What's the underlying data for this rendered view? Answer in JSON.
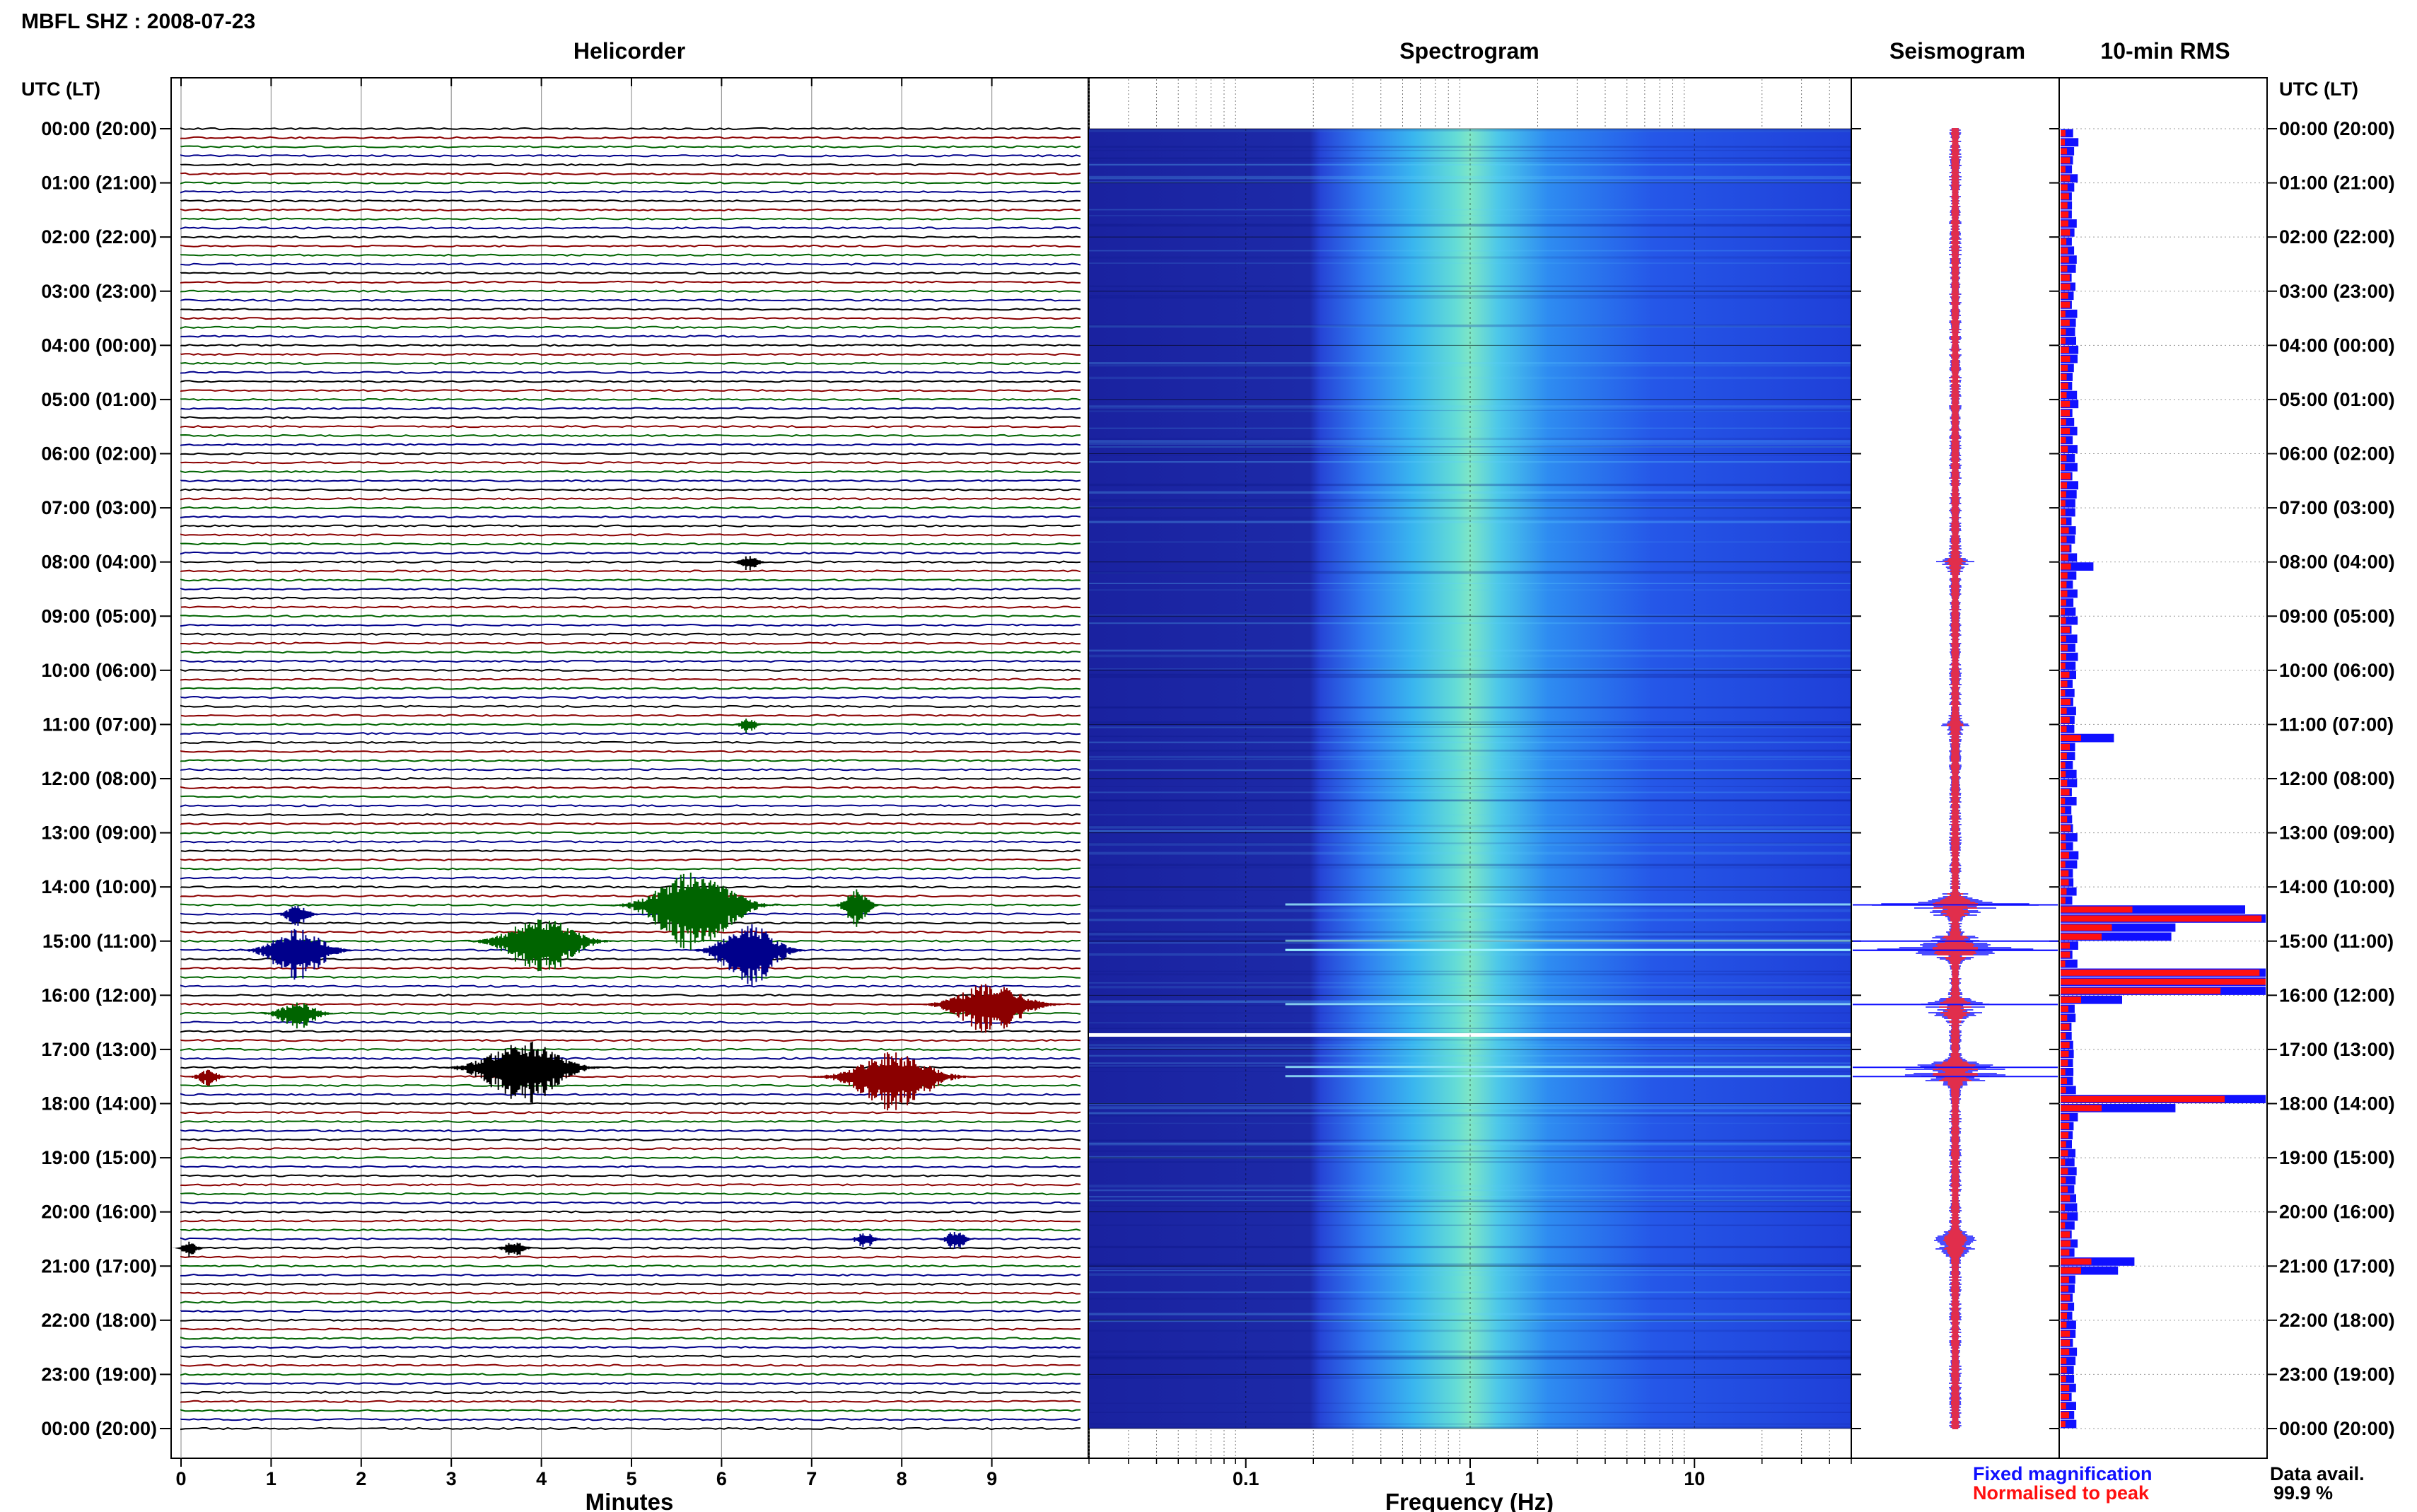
{
  "station_title": "MBFL SHZ : 2008-07-23",
  "panels": {
    "helicorder": "Helicorder",
    "spectrogram": "Spectrogram",
    "seismogram": "Seismogram",
    "rms": "10-min RMS"
  },
  "time_axis_header": "UTC (LT)",
  "time_labels": [
    "00:00 (20:00)",
    "01:00 (21:00)",
    "02:00 (22:00)",
    "03:00 (23:00)",
    "04:00 (00:00)",
    "05:00 (01:00)",
    "06:00 (02:00)",
    "07:00 (03:00)",
    "08:00 (04:00)",
    "09:00 (05:00)",
    "10:00 (06:00)",
    "11:00 (07:00)",
    "12:00 (08:00)",
    "13:00 (09:00)",
    "14:00 (10:00)",
    "15:00 (11:00)",
    "16:00 (12:00)",
    "17:00 (13:00)",
    "18:00 (14:00)",
    "19:00 (15:00)",
    "20:00 (16:00)",
    "21:00 (17:00)",
    "22:00 (18:00)",
    "23:00 (19:00)",
    "00:00 (20:00)"
  ],
  "legend": {
    "fixed": {
      "label": "Fixed magnification",
      "color": "#1010ff"
    },
    "normalised": {
      "label": "Normalised to peak",
      "color": "#ff1010"
    }
  },
  "data_availability": {
    "label": "Data avail.",
    "value": "99.9 %"
  },
  "trace_colors": [
    "#000000",
    "#8b0000",
    "#006400",
    "#00008b"
  ],
  "chart_data": [
    {
      "type": "line",
      "name": "helicorder",
      "title": "Helicorder",
      "xlabel": "Minutes",
      "x_ticks": [
        "0",
        "1",
        "2",
        "3",
        "4",
        "5",
        "6",
        "7",
        "8",
        "9"
      ],
      "xlim": [
        0,
        10
      ],
      "ylim": [
        "00:00",
        "24:00"
      ],
      "rows_per_hour": 6,
      "events": [
        {
          "hour": 8.0,
          "minute": 6.3,
          "amp": 0.3,
          "dur": 0.5
        },
        {
          "hour": 11.0,
          "minute": 6.3,
          "amp": 0.3,
          "dur": 0.4
        },
        {
          "hour": 14.33,
          "minute": 5.7,
          "amp": 1.6,
          "dur": 2.0
        },
        {
          "hour": 14.33,
          "minute": 7.5,
          "amp": 0.7,
          "dur": 0.6
        },
        {
          "hour": 14.5,
          "minute": 1.3,
          "amp": 0.4,
          "dur": 0.6
        },
        {
          "hour": 15.0,
          "minute": 4.0,
          "amp": 1.1,
          "dur": 1.8
        },
        {
          "hour": 15.17,
          "minute": 1.3,
          "amp": 1.0,
          "dur": 1.4
        },
        {
          "hour": 15.17,
          "minute": 6.3,
          "amp": 1.3,
          "dur": 1.4
        },
        {
          "hour": 16.17,
          "minute": 9.0,
          "amp": 1.0,
          "dur": 1.8
        },
        {
          "hour": 16.33,
          "minute": 1.3,
          "amp": 0.5,
          "dur": 1.0
        },
        {
          "hour": 17.33,
          "minute": 3.8,
          "amp": 1.2,
          "dur": 2.0
        },
        {
          "hour": 17.5,
          "minute": 7.9,
          "amp": 1.1,
          "dur": 2.0
        },
        {
          "hour": 17.5,
          "minute": 0.3,
          "amp": 0.3,
          "dur": 0.6
        },
        {
          "hour": 20.5,
          "minute": 7.6,
          "amp": 0.3,
          "dur": 0.5
        },
        {
          "hour": 20.5,
          "minute": 8.6,
          "amp": 0.4,
          "dur": 0.5
        },
        {
          "hour": 20.67,
          "minute": 3.7,
          "amp": 0.3,
          "dur": 0.5
        },
        {
          "hour": 20.67,
          "minute": 0.1,
          "amp": 0.3,
          "dur": 0.4
        }
      ]
    },
    {
      "type": "heatmap",
      "name": "spectrogram",
      "title": "Spectrogram",
      "xlabel": "Frequency (Hz)",
      "x_scale": "log",
      "xlim": [
        0.02,
        50
      ],
      "x_ticks": [
        0.1,
        1,
        10
      ],
      "x_tick_labels": [
        "0.1",
        "1",
        "10"
      ],
      "ylim": [
        "00:00",
        "24:00"
      ],
      "peak_frequency_hz": 1.0,
      "low_cutoff_hz": 0.2
    },
    {
      "type": "line",
      "name": "seismogram",
      "title": "Seismogram",
      "ylim": [
        "00:00",
        "24:00"
      ]
    },
    {
      "type": "bar",
      "name": "10-min RMS",
      "title": "10-min RMS",
      "orientation": "horizontal",
      "ylim": [
        "00:00",
        "24:00"
      ],
      "bins_per_hour": 6,
      "baseline_fixed": 0.07,
      "baseline_normalised": 0.035,
      "highlights": [
        {
          "hour": 8.0,
          "fixed": 0.16,
          "normalised": 0.05
        },
        {
          "hour": 11.17,
          "fixed": 0.26,
          "normalised": 0.1
        },
        {
          "hour": 14.33,
          "fixed": 0.9,
          "normalised": 0.35
        },
        {
          "hour": 14.5,
          "fixed": 1.0,
          "normalised": 0.98
        },
        {
          "hour": 14.67,
          "fixed": 0.56,
          "normalised": 0.25
        },
        {
          "hour": 14.83,
          "fixed": 0.54,
          "normalised": 0.2
        },
        {
          "hour": 15.5,
          "fixed": 1.0,
          "normalised": 0.97
        },
        {
          "hour": 15.67,
          "fixed": 1.0,
          "normalised": 1.0
        },
        {
          "hour": 15.83,
          "fixed": 1.0,
          "normalised": 0.78
        },
        {
          "hour": 16.0,
          "fixed": 0.3,
          "normalised": 0.1
        },
        {
          "hour": 17.83,
          "fixed": 1.0,
          "normalised": 0.8
        },
        {
          "hour": 18.0,
          "fixed": 0.56,
          "normalised": 0.2
        },
        {
          "hour": 20.83,
          "fixed": 0.36,
          "normalised": 0.15
        },
        {
          "hour": 21.0,
          "fixed": 0.28,
          "normalised": 0.1
        }
      ]
    }
  ]
}
